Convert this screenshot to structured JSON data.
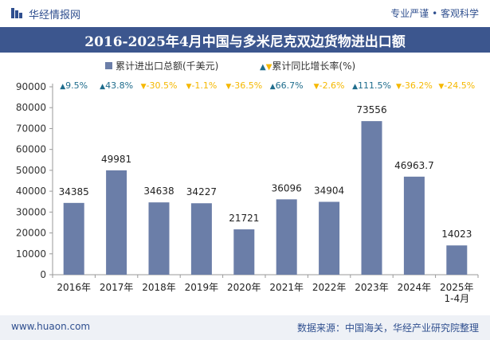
{
  "header": {
    "brand": "华经情报网",
    "slogan": "专业严谨 • 客观科学"
  },
  "colors": {
    "bar": "#6b7ea8",
    "up": "#1e6c8c",
    "down": "#f5b800",
    "titlebar": "#3c568e"
  },
  "chart_data": {
    "type": "bar",
    "title": "2016-2025年4月中国与多米尼克双边货物进出口额",
    "legend": {
      "series": "累计进出口总额(千美元)",
      "growth": "累计同比增长率(%)"
    },
    "categories": [
      "2016年",
      "2017年",
      "2018年",
      "2019年",
      "2020年",
      "2021年",
      "2022年",
      "2023年",
      "2024年",
      "2025年\n1-4月"
    ],
    "series": [
      {
        "name": "累计进出口总额(千美元)",
        "values": [
          34385,
          49981,
          34638,
          34227,
          21721,
          36096,
          34904,
          73556,
          46963.7,
          14023
        ],
        "labels": [
          "34385",
          "49981",
          "34638",
          "34227",
          "21721",
          "36096",
          "34904",
          "73556",
          "46963.7",
          "14023"
        ]
      }
    ],
    "growth": [
      {
        "text": "9.5%",
        "dir": "up"
      },
      {
        "text": "43.8%",
        "dir": "up"
      },
      {
        "text": "-30.5%",
        "dir": "down"
      },
      {
        "text": "-1.1%",
        "dir": "down"
      },
      {
        "text": "-36.5%",
        "dir": "down"
      },
      {
        "text": "66.7%",
        "dir": "up"
      },
      {
        "text": "-2.6%",
        "dir": "down"
      },
      {
        "text": "111.5%",
        "dir": "up"
      },
      {
        "text": "-36.2%",
        "dir": "down"
      },
      {
        "text": "-24.5%",
        "dir": "down"
      }
    ],
    "yticks": [
      "0",
      "10000",
      "20000",
      "30000",
      "40000",
      "50000",
      "60000",
      "70000",
      "80000",
      "90000"
    ],
    "ylim": [
      0,
      90000
    ]
  },
  "footer": {
    "website": "www.huaon.com",
    "source": "数据来源：中国海关，华经产业研究院整理"
  }
}
